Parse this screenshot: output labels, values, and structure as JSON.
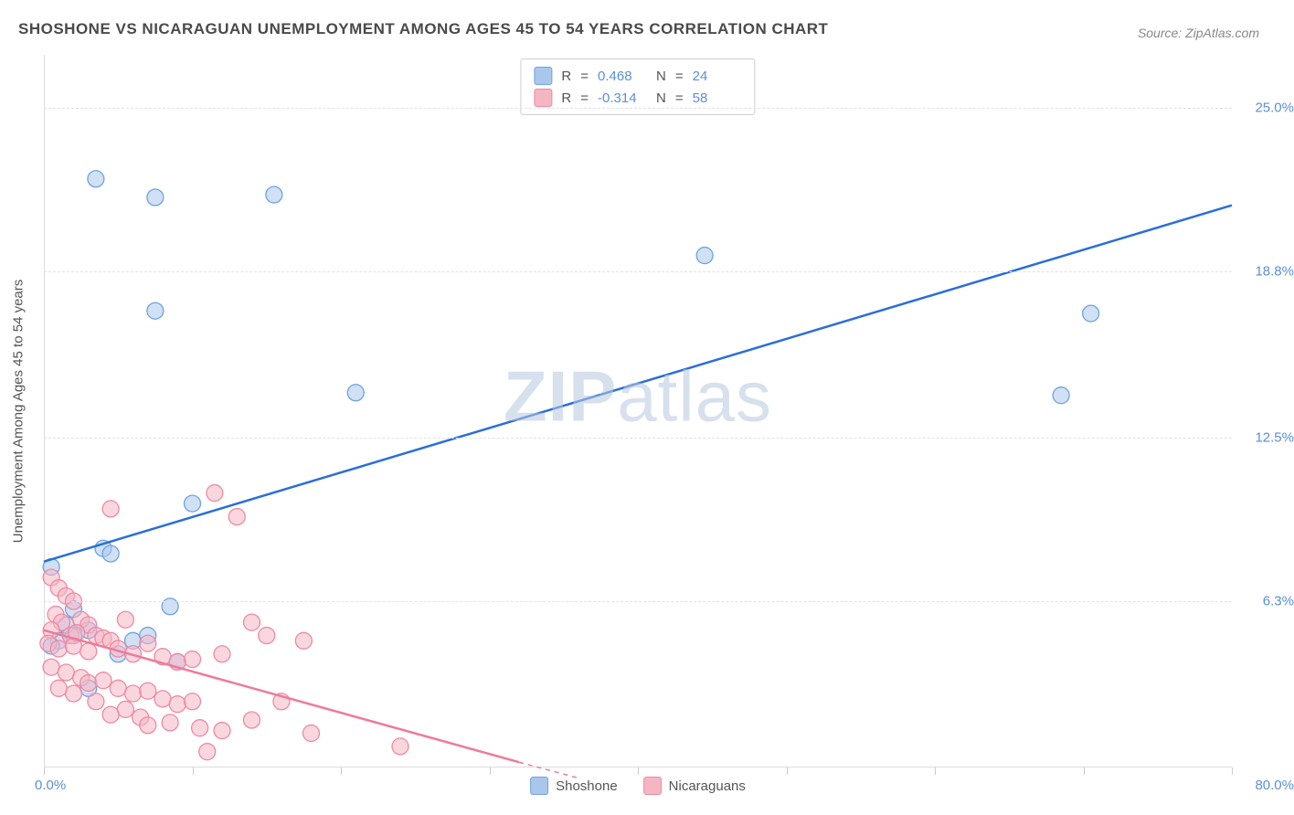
{
  "title": "SHOSHONE VS NICARAGUAN UNEMPLOYMENT AMONG AGES 45 TO 54 YEARS CORRELATION CHART",
  "source": "Source: ZipAtlas.com",
  "watermark_a": "ZIP",
  "watermark_b": "atlas",
  "y_axis_label": "Unemployment Among Ages 45 to 54 years",
  "chart": {
    "type": "scatter",
    "background_color": "#ffffff",
    "grid_color": "#e3e3e3",
    "axis_label_color": "#5b8fd6",
    "text_color": "#555555",
    "xlim": [
      0,
      80
    ],
    "ylim": [
      0,
      27
    ],
    "x_origin_label": "0.0%",
    "x_max_label": "80.0%",
    "x_ticks": [
      0,
      10,
      20,
      30,
      40,
      50,
      60,
      70,
      80
    ],
    "y_ticks": [
      6.3,
      12.5,
      18.8,
      25.0
    ],
    "y_tick_labels": [
      "6.3%",
      "12.5%",
      "18.8%",
      "25.0%"
    ],
    "marker_radius": 9,
    "marker_opacity": 0.55,
    "line_width": 2.5,
    "series": [
      {
        "name": "Shoshone",
        "color_fill": "#a9c7ec",
        "color_stroke": "#6fa3dd",
        "line_color": "#2a6fd6",
        "r": "0.468",
        "n": "24",
        "regression": {
          "x1": 0,
          "y1": 7.8,
          "x2": 80,
          "y2": 21.3
        },
        "points": [
          [
            0.5,
            7.6
          ],
          [
            3.5,
            22.3
          ],
          [
            7.5,
            21.6
          ],
          [
            15.5,
            21.7
          ],
          [
            7.5,
            17.3
          ],
          [
            21.0,
            14.2
          ],
          [
            44.5,
            19.4
          ],
          [
            70.5,
            17.2
          ],
          [
            68.5,
            14.1
          ],
          [
            10.0,
            10.0
          ],
          [
            4.0,
            8.3
          ],
          [
            4.5,
            8.1
          ],
          [
            1.0,
            4.8
          ],
          [
            3.0,
            5.2
          ],
          [
            2.0,
            5.0
          ],
          [
            6.0,
            4.8
          ],
          [
            8.5,
            6.1
          ],
          [
            7.0,
            5.0
          ],
          [
            5.0,
            4.3
          ],
          [
            9.0,
            4.0
          ],
          [
            3.0,
            3.0
          ],
          [
            2.0,
            6.0
          ],
          [
            1.5,
            5.4
          ],
          [
            0.5,
            4.6
          ]
        ]
      },
      {
        "name": "Nicaraguans",
        "color_fill": "#f5b6c4",
        "color_stroke": "#ed8aa2",
        "line_color": "#ef7a99",
        "r": "-0.314",
        "n": "58",
        "regression": {
          "x1": 0,
          "y1": 5.2,
          "x2": 32,
          "y2": 0.2
        },
        "regression_ext": {
          "x1": 32,
          "y1": 0.2,
          "x2": 36,
          "y2": -0.4
        },
        "points": [
          [
            4.5,
            9.8
          ],
          [
            11.5,
            10.4
          ],
          [
            13.0,
            9.5
          ],
          [
            0.5,
            7.2
          ],
          [
            1.0,
            6.8
          ],
          [
            1.5,
            6.5
          ],
          [
            2.0,
            6.3
          ],
          [
            0.8,
            5.8
          ],
          [
            1.2,
            5.5
          ],
          [
            2.5,
            5.6
          ],
          [
            3.0,
            5.4
          ],
          [
            0.5,
            5.2
          ],
          [
            1.8,
            5.0
          ],
          [
            2.2,
            5.1
          ],
          [
            3.5,
            5.0
          ],
          [
            4.0,
            4.9
          ],
          [
            0.3,
            4.7
          ],
          [
            1.0,
            4.5
          ],
          [
            2.0,
            4.6
          ],
          [
            3.0,
            4.4
          ],
          [
            4.5,
            4.8
          ],
          [
            5.0,
            4.5
          ],
          [
            6.0,
            4.3
          ],
          [
            7.0,
            4.7
          ],
          [
            8.0,
            4.2
          ],
          [
            9.0,
            4.0
          ],
          [
            10.0,
            4.1
          ],
          [
            12.0,
            4.3
          ],
          [
            14.0,
            5.5
          ],
          [
            15.0,
            5.0
          ],
          [
            17.5,
            4.8
          ],
          [
            0.5,
            3.8
          ],
          [
            1.5,
            3.6
          ],
          [
            2.5,
            3.4
          ],
          [
            3.0,
            3.2
          ],
          [
            4.0,
            3.3
          ],
          [
            5.0,
            3.0
          ],
          [
            6.0,
            2.8
          ],
          [
            7.0,
            2.9
          ],
          [
            8.0,
            2.6
          ],
          [
            9.0,
            2.4
          ],
          [
            10.0,
            2.5
          ],
          [
            5.5,
            2.2
          ],
          [
            6.5,
            1.9
          ],
          [
            7.0,
            1.6
          ],
          [
            8.5,
            1.7
          ],
          [
            10.5,
            1.5
          ],
          [
            12.0,
            1.4
          ],
          [
            14.0,
            1.8
          ],
          [
            18.0,
            1.3
          ],
          [
            11.0,
            0.6
          ],
          [
            24.0,
            0.8
          ],
          [
            3.5,
            2.5
          ],
          [
            4.5,
            2.0
          ],
          [
            2.0,
            2.8
          ],
          [
            1.0,
            3.0
          ],
          [
            5.5,
            5.6
          ],
          [
            16.0,
            2.5
          ]
        ]
      }
    ]
  },
  "legend_top": {
    "r_label": "R",
    "n_label": "N",
    "eq": "="
  },
  "legend_bottom": {
    "items": [
      "Shoshone",
      "Nicaraguans"
    ]
  }
}
